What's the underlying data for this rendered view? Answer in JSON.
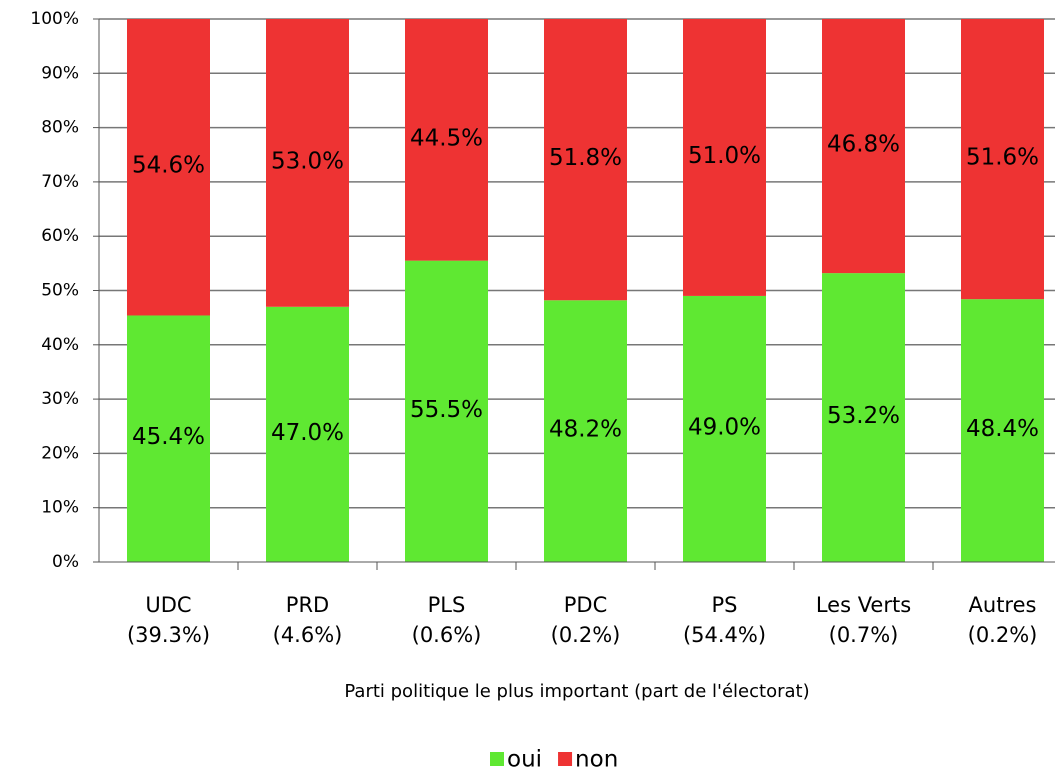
{
  "chart_data": {
    "type": "stacked_bar",
    "x_label": "Parti politique le plus important (part de l'électorat)",
    "categories": [
      [
        "UDC",
        "(39.3%)"
      ],
      [
        "PRD",
        "(4.6%)"
      ],
      [
        "PLS",
        "(0.6%)"
      ],
      [
        "PDC",
        "(0.2%)"
      ],
      [
        "PS",
        "(54.4%)"
      ],
      [
        "Les Verts",
        "(0.7%)"
      ],
      [
        "Autres",
        "(0.2%)"
      ]
    ],
    "series": [
      {
        "name": "oui",
        "color": "#5fe832",
        "values": [
          45.4,
          47.0,
          55.5,
          48.2,
          49.0,
          53.2,
          48.4
        ],
        "value_labels": [
          "45.4%",
          "47.0%",
          "55.5%",
          "48.2%",
          "49.0%",
          "53.2%",
          "48.4%"
        ]
      },
      {
        "name": "non",
        "color": "#ee3333",
        "values": [
          54.6,
          53.0,
          44.5,
          51.8,
          51.0,
          46.8,
          51.6
        ],
        "value_labels": [
          "54.6%",
          "53.0%",
          "44.5%",
          "51.8%",
          "51.0%",
          "46.8%",
          "51.6%"
        ]
      }
    ],
    "ylim": [
      0,
      100
    ],
    "yticks": [
      {
        "value": 0,
        "label": "0%"
      },
      {
        "value": 10,
        "label": "10%"
      },
      {
        "value": 20,
        "label": "20%"
      },
      {
        "value": 30,
        "label": "30%"
      },
      {
        "value": 40,
        "label": "40%"
      },
      {
        "value": 50,
        "label": "50%"
      },
      {
        "value": 60,
        "label": "60%"
      },
      {
        "value": 70,
        "label": "70%"
      },
      {
        "value": 80,
        "label": "80%"
      },
      {
        "value": 90,
        "label": "90%"
      },
      {
        "value": 100,
        "label": "100%"
      }
    ],
    "grid": true,
    "legend": "bottom"
  }
}
